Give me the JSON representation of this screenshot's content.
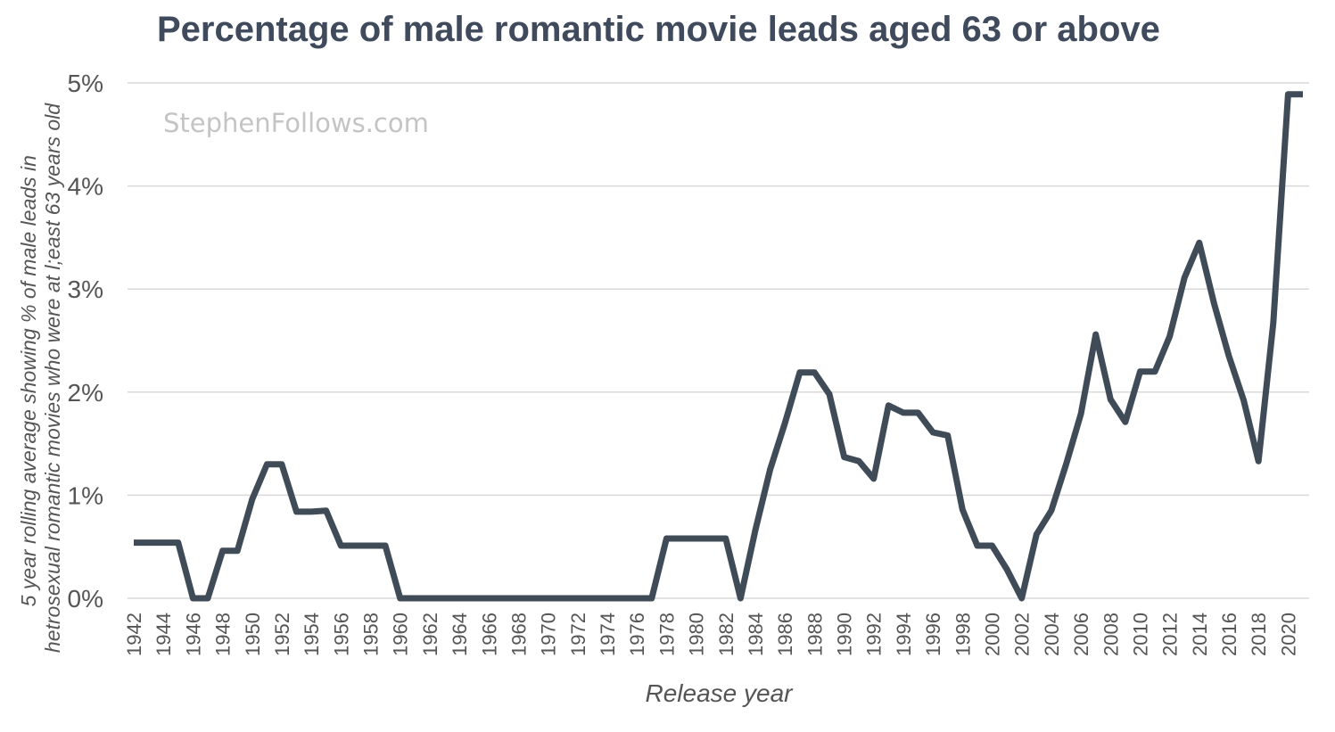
{
  "chart_data": {
    "type": "line",
    "title": "Percentage of male romantic movie leads aged 63 or above",
    "watermark": "StephenFollows.com",
    "xlabel": "Release year",
    "ylabel_lines": [
      "5 year rolling average showing % of male leads in",
      "hetrosexual romantic movies who were at l;east 63 years old"
    ],
    "ylim": [
      0,
      5
    ],
    "yticks": [
      0,
      1,
      2,
      3,
      4,
      5
    ],
    "ytick_labels": [
      "0%",
      "1%",
      "2%",
      "3%",
      "4%",
      "5%"
    ],
    "xticks": [
      "1942",
      "1944",
      "1946",
      "1948",
      "1950",
      "1952",
      "1954",
      "1956",
      "1958",
      "1960",
      "1962",
      "1964",
      "1966",
      "1968",
      "1970",
      "1972",
      "1974",
      "1976",
      "1978",
      "1980",
      "1982",
      "1984",
      "1986",
      "1988",
      "1990",
      "1992",
      "1994",
      "1996",
      "1998",
      "2000",
      "2002",
      "2004",
      "2006",
      "2008",
      "2010",
      "2012",
      "2014",
      "2016",
      "2018",
      "2020"
    ],
    "grid": true,
    "x": [
      1942,
      1943,
      1944,
      1945,
      1946,
      1947,
      1948,
      1949,
      1950,
      1951,
      1952,
      1953,
      1954,
      1955,
      1956,
      1957,
      1958,
      1959,
      1960,
      1961,
      1962,
      1963,
      1964,
      1965,
      1966,
      1967,
      1968,
      1969,
      1970,
      1971,
      1972,
      1973,
      1974,
      1975,
      1976,
      1977,
      1978,
      1979,
      1980,
      1981,
      1982,
      1983,
      1984,
      1985,
      1986,
      1987,
      1988,
      1989,
      1990,
      1991,
      1992,
      1993,
      1994,
      1995,
      1996,
      1997,
      1998,
      1999,
      2000,
      2001,
      2002,
      2003,
      2004,
      2005,
      2006,
      2007,
      2008,
      2009,
      2010,
      2011,
      2012,
      2013,
      2014,
      2015,
      2016,
      2017,
      2018,
      2019,
      2020,
      2021
    ],
    "series": [
      {
        "color": "#404b58",
        "values": [
          0.54,
          0.54,
          0.54,
          0.54,
          0.0,
          0.0,
          0.46,
          0.46,
          0.96,
          1.3,
          1.3,
          0.84,
          0.84,
          0.85,
          0.51,
          0.51,
          0.51,
          0.51,
          0.0,
          0.0,
          0.0,
          0.0,
          0.0,
          0.0,
          0.0,
          0.0,
          0.0,
          0.0,
          0.0,
          0.0,
          0.0,
          0.0,
          0.0,
          0.0,
          0.0,
          0.0,
          0.58,
          0.58,
          0.58,
          0.58,
          0.58,
          0.0,
          0.66,
          1.25,
          1.7,
          2.19,
          2.19,
          1.98,
          1.37,
          1.33,
          1.16,
          1.87,
          1.8,
          1.8,
          1.61,
          1.58,
          0.86,
          0.51,
          0.51,
          0.28,
          0.0,
          0.62,
          0.85,
          1.3,
          1.79,
          2.56,
          1.93,
          1.71,
          2.2,
          2.2,
          2.54,
          3.11,
          3.45,
          2.86,
          2.35,
          1.92,
          1.33,
          2.67,
          4.89,
          4.89
        ]
      }
    ]
  }
}
